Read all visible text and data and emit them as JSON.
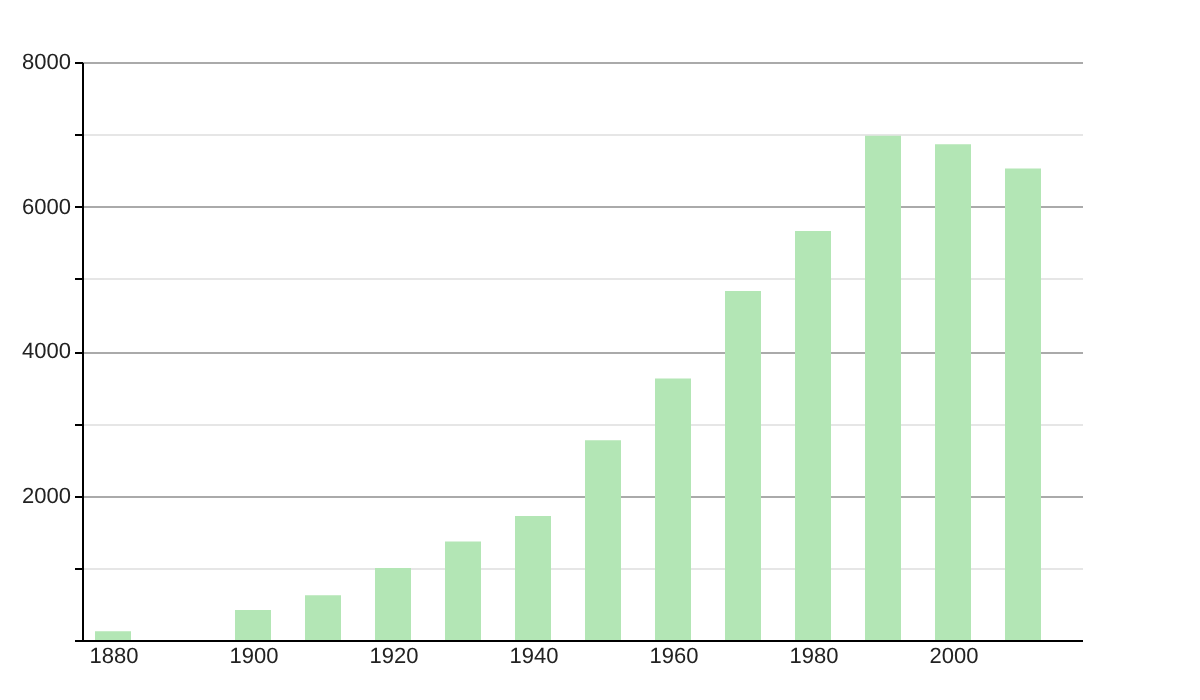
{
  "chart_data": {
    "type": "bar",
    "x": [
      1880,
      1900,
      1910,
      1920,
      1930,
      1940,
      1950,
      1960,
      1970,
      1980,
      1990,
      2000,
      2010
    ],
    "values": [
      120,
      415,
      620,
      995,
      1365,
      1715,
      2765,
      3620,
      4830,
      5660,
      6980,
      6860,
      6525
    ],
    "color": "#b3e6b5",
    "xlim": [
      1877,
      2017
    ],
    "xticks": [
      1880,
      1900,
      1920,
      1940,
      1960,
      1980,
      2000
    ],
    "ylim": [
      0,
      8000
    ],
    "yticks": [
      {
        "value": 0,
        "label": null
      },
      {
        "value": 1000,
        "label": null
      },
      2000,
      {
        "value": 3000,
        "label": null
      },
      4000,
      {
        "value": 5000,
        "label": null
      },
      6000,
      {
        "value": 7000,
        "label": null
      },
      8000
    ],
    "grid": "y"
  }
}
